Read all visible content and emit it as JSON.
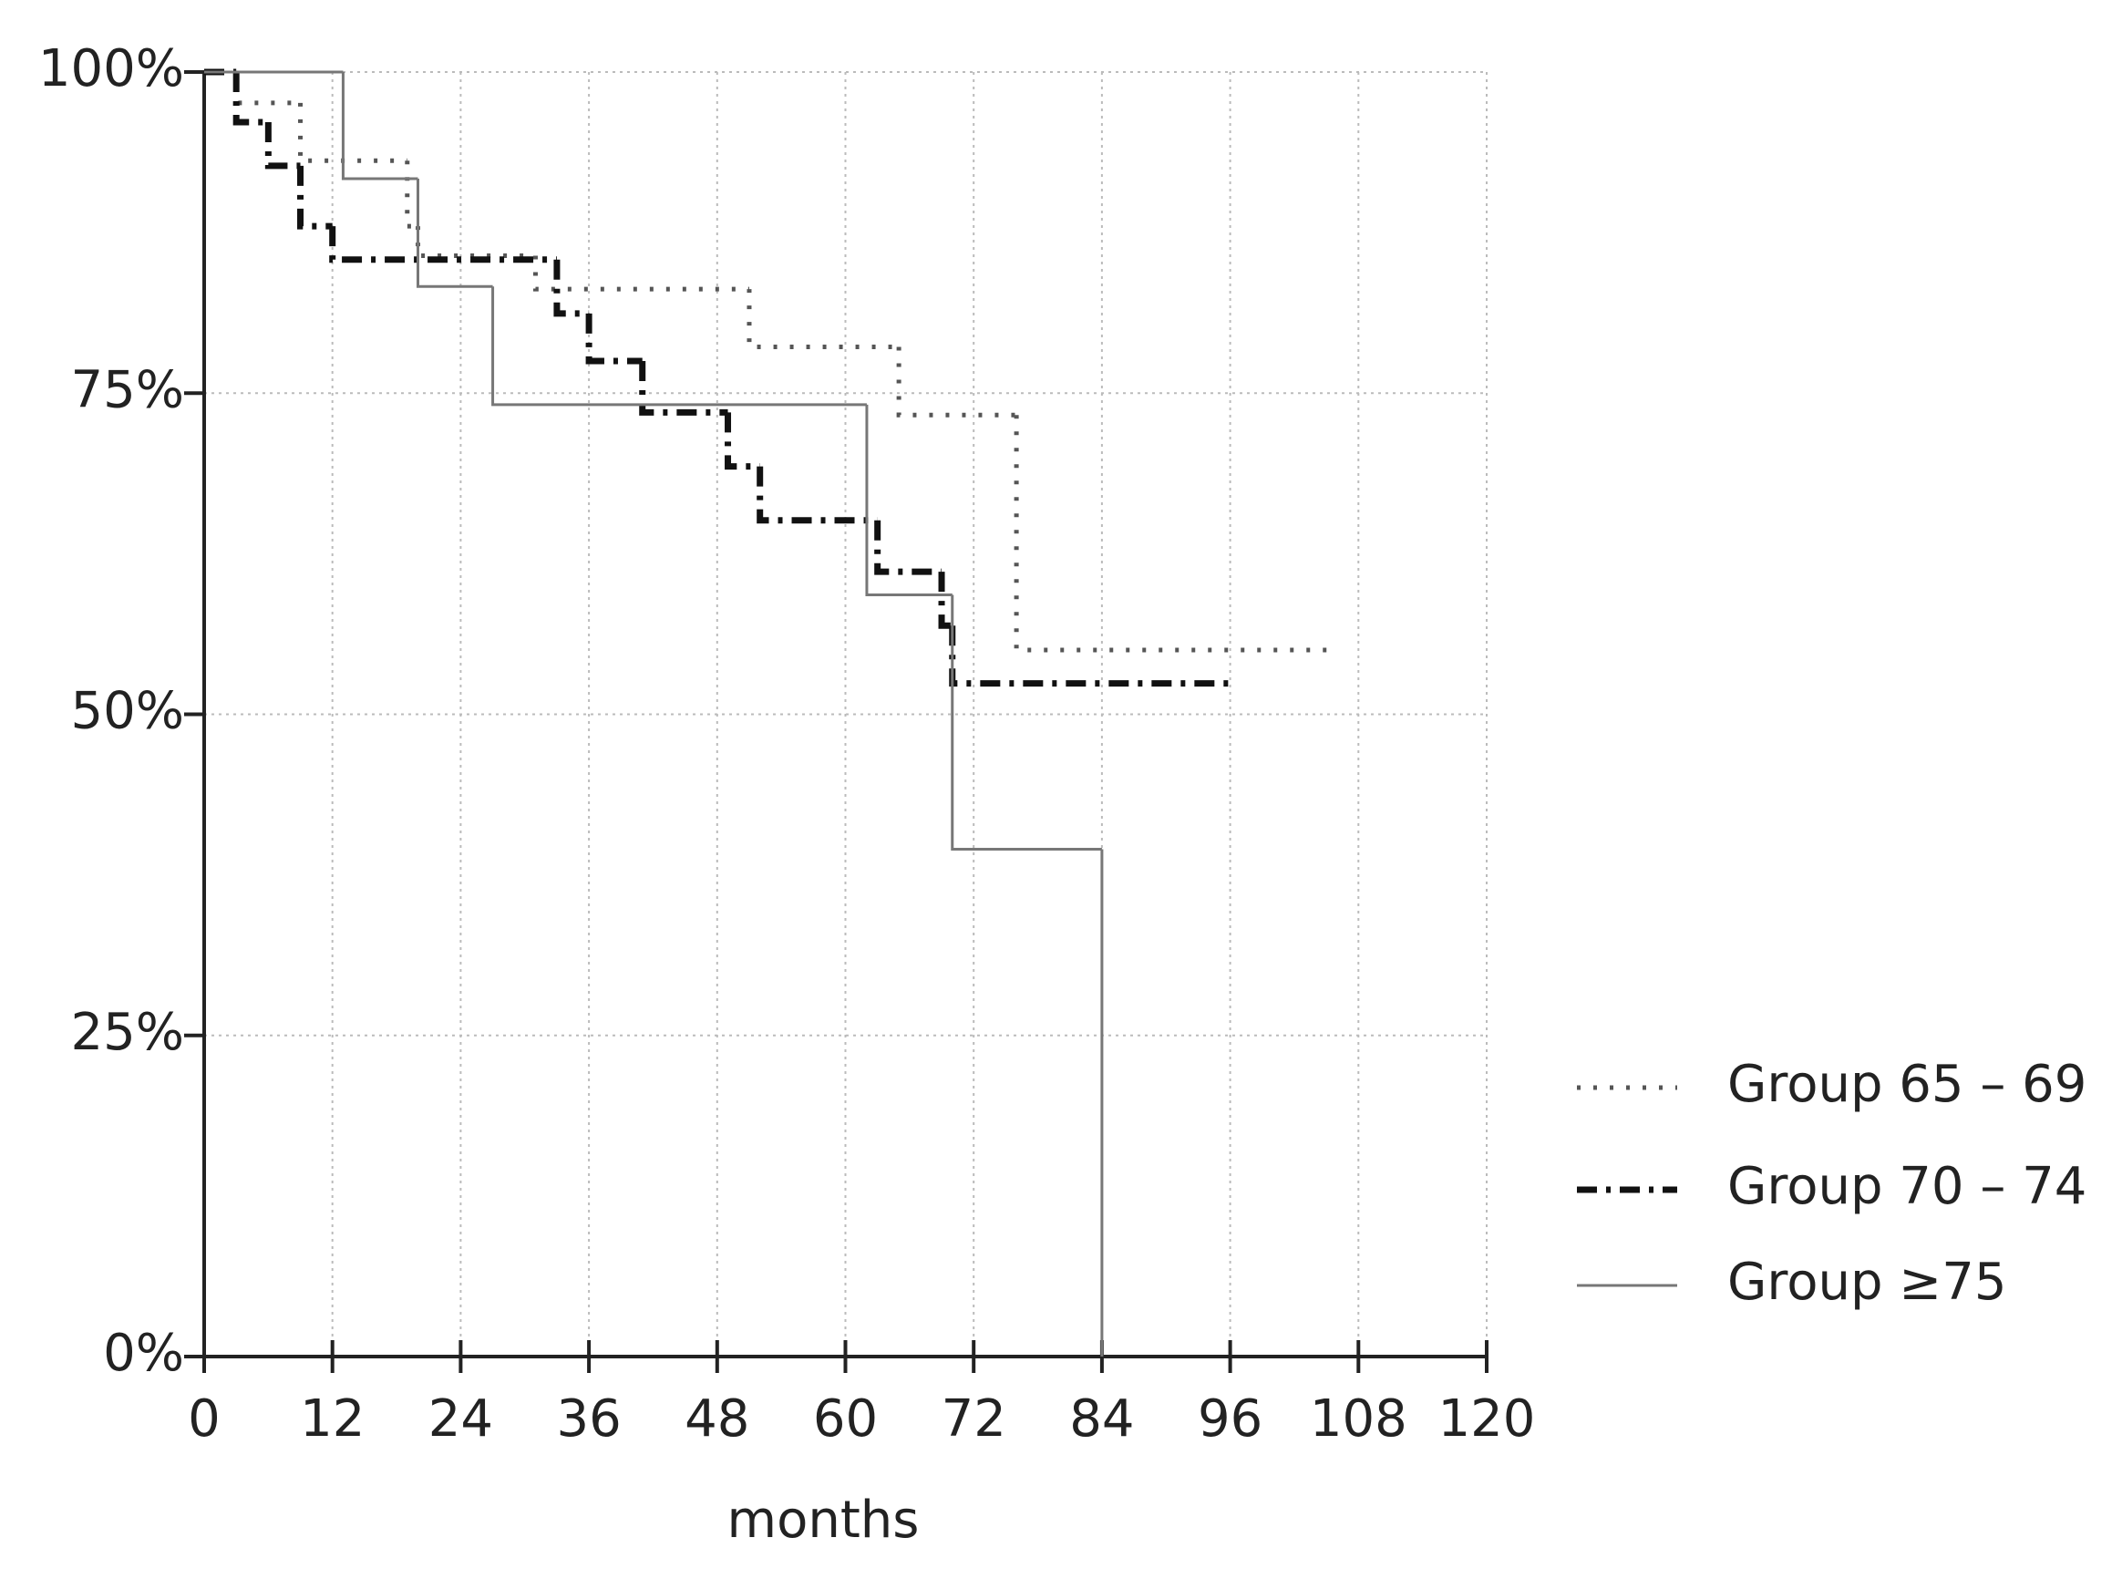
{
  "chart_data": {
    "type": "step",
    "x_label": "months",
    "legend": "right",
    "grid": true,
    "xlim": [
      0,
      120
    ],
    "xticks": [
      0,
      12,
      24,
      36,
      48,
      60,
      72,
      84,
      96,
      108,
      120
    ],
    "ylim": [
      0,
      100
    ],
    "yticks": [
      {
        "value": 0,
        "label": "0%"
      },
      {
        "value": 25,
        "label": "25%"
      },
      {
        "value": 50,
        "label": "50%"
      },
      {
        "value": 75,
        "label": "75%"
      },
      {
        "value": 100,
        "label": "100%"
      }
    ],
    "series": [
      {
        "name": "Group 65 – 69",
        "color": "#555555",
        "style": "dotted",
        "x": [
          0,
          3,
          9,
          19,
          20,
          31,
          51,
          65,
          76,
          106
        ],
        "values": [
          100,
          97.6,
          93.1,
          88,
          85.7,
          83.1,
          78.6,
          73.3,
          55,
          55
        ]
      },
      {
        "name": "Group 70 – 74",
        "color": "#111111",
        "style": "dashdot",
        "x": [
          0,
          3,
          6,
          9,
          12,
          33,
          36,
          41,
          49,
          52,
          63,
          69,
          70,
          96
        ],
        "values": [
          100,
          96.1,
          92.7,
          88,
          85.4,
          81.2,
          77.5,
          73.5,
          69.3,
          65.1,
          61.1,
          56.9,
          52.4,
          52.4
        ]
      },
      {
        "name": "Group ≥75",
        "color": "#777777",
        "style": "solid",
        "x": [
          0,
          13,
          20,
          27,
          62,
          70,
          84
        ],
        "values": [
          100,
          91.7,
          83.3,
          74.1,
          59.3,
          39.5,
          0
        ]
      }
    ]
  }
}
